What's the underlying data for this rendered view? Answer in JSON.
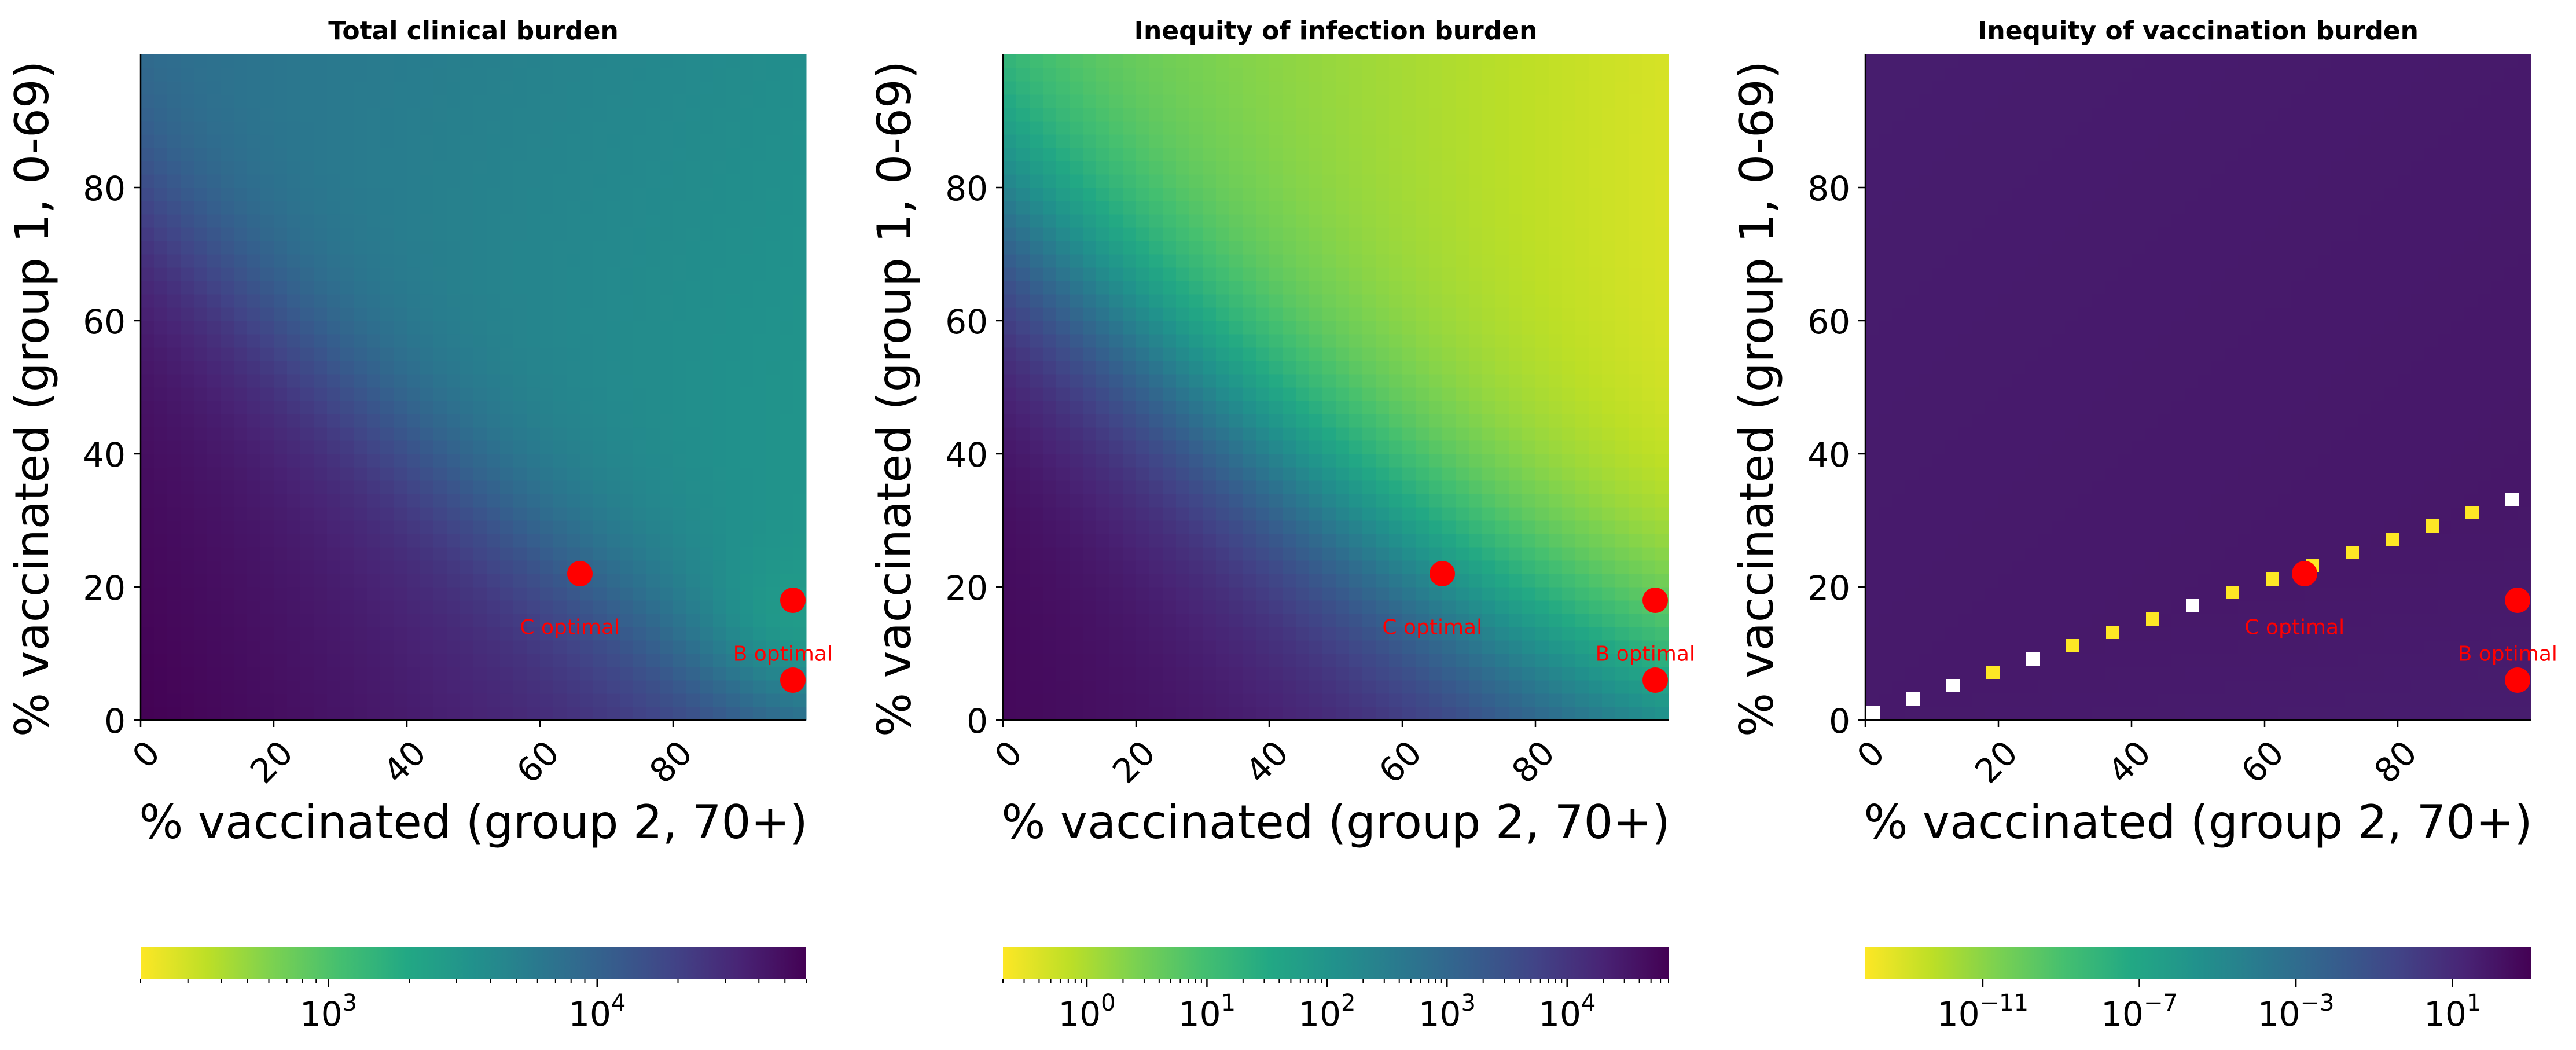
{
  "figure": {
    "background": "#ffffff"
  },
  "chart_data": [
    {
      "type": "heatmap",
      "title": "Total clinical burden",
      "xlabel": "% vaccinated (group 2, 70+)",
      "ylabel": "% vaccinated (group 1, 0-69)",
      "xlim": [
        0,
        100
      ],
      "ylim": [
        0,
        100
      ],
      "xticks": [
        "0",
        "20",
        "40",
        "60",
        "80"
      ],
      "yticks": [
        "0",
        "20",
        "40",
        "60",
        "80"
      ],
      "grid": false,
      "colormap": "viridis_r",
      "colorbar": {
        "scale": "log",
        "range": [
          200,
          60000
        ],
        "ticks": [
          {
            "base": "10",
            "exp": "3"
          },
          {
            "base": "10",
            "exp": "4"
          }
        ]
      },
      "points": [
        {
          "x": 66,
          "y": 22,
          "label": ""
        },
        {
          "x": 98,
          "y": 18,
          "label": ""
        },
        {
          "x": 98,
          "y": 6,
          "label": ""
        }
      ],
      "annotations": [
        {
          "text": "C optimal",
          "x": 64.5,
          "y": 12.9
        },
        {
          "text": "B optimal",
          "x": 96.5,
          "y": 8.9
        }
      ],
      "point_color": "#ff0000"
    },
    {
      "type": "heatmap",
      "title": "Inequity of infection burden",
      "xlabel": "% vaccinated (group 2, 70+)",
      "ylabel": "% vaccinated (group 1, 0-69)",
      "xlim": [
        0,
        100
      ],
      "ylim": [
        0,
        100
      ],
      "xticks": [
        "0",
        "20",
        "40",
        "60",
        "80"
      ],
      "yticks": [
        "0",
        "20",
        "40",
        "60",
        "80"
      ],
      "grid": false,
      "colormap": "viridis_r",
      "colorbar": {
        "scale": "log",
        "range": [
          0.2,
          70000
        ],
        "ticks": [
          {
            "base": "10",
            "exp": "0"
          },
          {
            "base": "10",
            "exp": "1"
          },
          {
            "base": "10",
            "exp": "2"
          },
          {
            "base": "10",
            "exp": "3"
          },
          {
            "base": "10",
            "exp": "4"
          }
        ]
      },
      "points": [
        {
          "x": 66,
          "y": 22,
          "label": ""
        },
        {
          "x": 98,
          "y": 18,
          "label": ""
        },
        {
          "x": 98,
          "y": 6,
          "label": ""
        }
      ],
      "annotations": [
        {
          "text": "C optimal",
          "x": 64.5,
          "y": 12.9
        },
        {
          "text": "B optimal",
          "x": 96.5,
          "y": 8.9
        }
      ],
      "point_color": "#ff0000"
    },
    {
      "type": "heatmap",
      "title": "Inequity of vaccination burden",
      "xlabel": "% vaccinated (group 2, 70+)",
      "ylabel": "% vaccinated (group 1, 0-69)",
      "xlim": [
        0,
        100
      ],
      "ylim": [
        0,
        100
      ],
      "xticks": [
        "0",
        "20",
        "40",
        "60",
        "80"
      ],
      "yticks": [
        "0",
        "20",
        "40",
        "60",
        "80"
      ],
      "grid": false,
      "colormap": "viridis_r",
      "colorbar": {
        "scale": "log",
        "range": [
          1e-14,
          1000
        ],
        "ticks": [
          {
            "base": "10",
            "exp": "−11"
          },
          {
            "base": "10",
            "exp": "−7"
          },
          {
            "base": "10",
            "exp": "−3"
          },
          {
            "base": "10",
            "exp": "1"
          }
        ]
      },
      "points": [
        {
          "x": 66,
          "y": 22,
          "label": ""
        },
        {
          "x": 98,
          "y": 18,
          "label": ""
        },
        {
          "x": 98,
          "y": 6,
          "label": ""
        }
      ],
      "annotations": [
        {
          "text": "C optimal",
          "x": 64.5,
          "y": 12.9
        },
        {
          "text": "B optimal",
          "x": 96.5,
          "y": 8.9
        }
      ],
      "point_color": "#ff0000",
      "diagonal_cells": [
        {
          "x": 0,
          "y": 0,
          "value": "low"
        },
        {
          "x": 6,
          "y": 2,
          "value": "low"
        },
        {
          "x": 12,
          "y": 4,
          "value": "low"
        },
        {
          "x": 18,
          "y": 6,
          "value": "high"
        },
        {
          "x": 24,
          "y": 8,
          "value": "low"
        },
        {
          "x": 30,
          "y": 10,
          "value": "high"
        },
        {
          "x": 36,
          "y": 12,
          "value": "high"
        },
        {
          "x": 42,
          "y": 14,
          "value": "high"
        },
        {
          "x": 48,
          "y": 16,
          "value": "low"
        },
        {
          "x": 54,
          "y": 18,
          "value": "high"
        },
        {
          "x": 60,
          "y": 20,
          "value": "high"
        },
        {
          "x": 66,
          "y": 22,
          "value": "high"
        },
        {
          "x": 72,
          "y": 24,
          "value": "high"
        },
        {
          "x": 78,
          "y": 26,
          "value": "high"
        },
        {
          "x": 84,
          "y": 28,
          "value": "high"
        },
        {
          "x": 90,
          "y": 30,
          "value": "high"
        },
        {
          "x": 96,
          "y": 32,
          "value": "low"
        }
      ]
    }
  ]
}
